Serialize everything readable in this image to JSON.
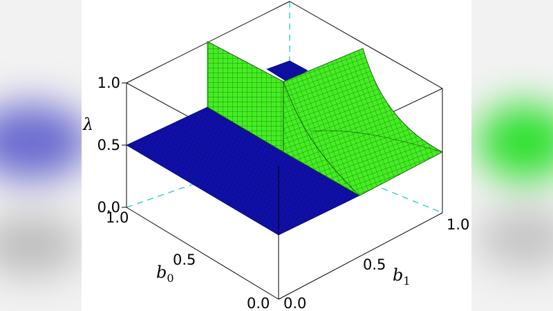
{
  "chart_data": {
    "type": "surface",
    "title": "",
    "axes": {
      "x": {
        "label": "b",
        "subscript": "1",
        "range": [
          0,
          1
        ],
        "ticks": [
          "0.0",
          "0.5",
          "1.0"
        ]
      },
      "y": {
        "label": "b",
        "subscript": "0",
        "range": [
          0,
          1
        ],
        "ticks": [
          "0.0",
          "0.5",
          "1.0"
        ]
      },
      "z": {
        "label": "λ",
        "range": [
          0,
          1
        ],
        "ticks": [
          "0.0",
          "0.5",
          "1.0"
        ]
      }
    },
    "surfaces": [
      {
        "region": "b0 >= b1",
        "value_lambda": 0.5,
        "color": "#1010a8"
      },
      {
        "region": "b0 < b1",
        "description_values": {
          "lambda_at_b0_0_b1_0.5": 1.0,
          "lambda_at_b0_0_b1_1.0": 1.0,
          "lambda_at_b0_1_b1_1.0": 0.5
        },
        "color": "#44ee22"
      }
    ],
    "grid": true
  },
  "colors": {
    "blue_surface": "#1010a8",
    "green_surface": "#44ee22",
    "back_edge": "#3ccfd8",
    "frame": "#000000"
  }
}
